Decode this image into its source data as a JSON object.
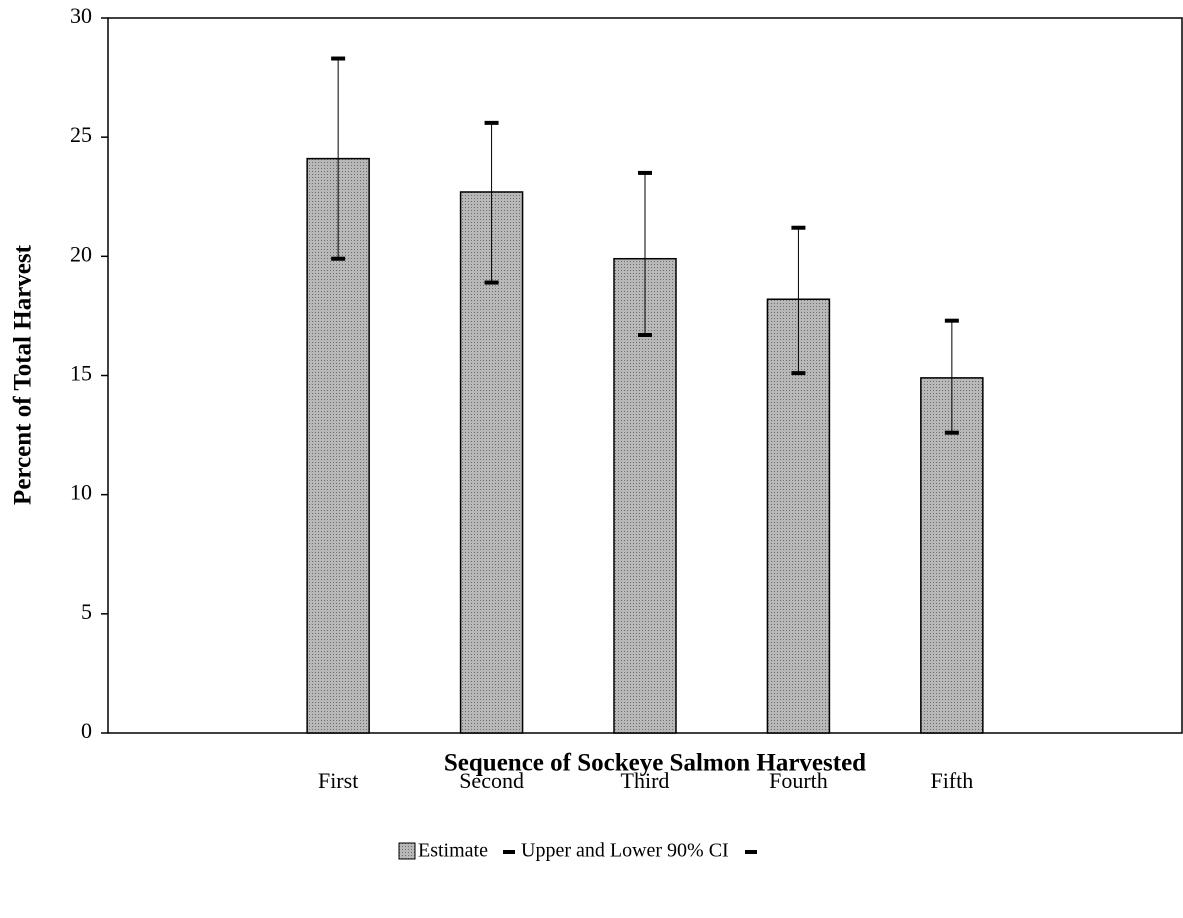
{
  "chart_data": {
    "type": "bar",
    "x_label": "Sequence of Sockeye Salmon Harvested",
    "y_label": "Percent of  Total Harvest",
    "categories": [
      "First",
      "Second",
      "Third",
      "Fourth",
      "Fifth"
    ],
    "series": [
      {
        "name": "Estimate",
        "color": "#a9a9a9",
        "values": [
          24.1,
          22.7,
          19.9,
          18.2,
          14.9
        ],
        "ci_upper": [
          28.3,
          25.6,
          23.5,
          21.2,
          17.3
        ],
        "ci_lower": [
          19.9,
          18.9,
          16.7,
          15.1,
          12.6
        ]
      }
    ],
    "ci_name": "Upper and Lower 90% CI",
    "ylim": [
      0,
      30
    ],
    "yticks": [
      0,
      5,
      10,
      15,
      20,
      25,
      30
    ],
    "grid": false
  }
}
